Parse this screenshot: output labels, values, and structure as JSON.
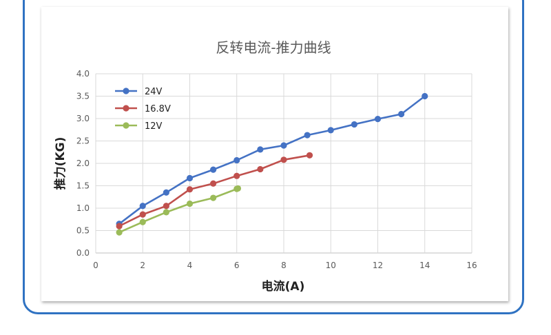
{
  "chart_data": {
    "type": "line",
    "title": "反转电流-推力曲线",
    "xlabel": "电流(A)",
    "ylabel": "推力(KG)",
    "xlim": [
      0,
      16
    ],
    "ylim": [
      0,
      4.0
    ],
    "xticks": [
      "0",
      "2",
      "4",
      "6",
      "8",
      "10",
      "12",
      "14",
      "16"
    ],
    "yticks": [
      "0.0",
      "0.5",
      "1.0",
      "1.5",
      "2.0",
      "2.5",
      "3.0",
      "3.5",
      "4.0"
    ],
    "grid": true,
    "legend_position": "top-left",
    "series": [
      {
        "name": "24V",
        "color": "#4472c4",
        "x": [
          1,
          2,
          3,
          4,
          5,
          6,
          7,
          8,
          9,
          10,
          11,
          12,
          13,
          14
        ],
        "y": [
          0.65,
          1.05,
          1.35,
          1.67,
          1.86,
          2.07,
          2.31,
          2.4,
          2.63,
          2.74,
          2.87,
          2.99,
          3.1,
          3.5
        ]
      },
      {
        "name": "16.8V",
        "color": "#c0504d",
        "x": [
          1,
          2,
          3,
          4,
          5,
          6,
          7,
          8,
          9.1
        ],
        "y": [
          0.6,
          0.86,
          1.05,
          1.42,
          1.55,
          1.72,
          1.87,
          2.08,
          2.18
        ]
      },
      {
        "name": "12V",
        "color": "#9bbb59",
        "x": [
          1,
          2,
          3,
          4,
          5,
          6,
          6.05
        ],
        "y": [
          0.46,
          0.69,
          0.91,
          1.1,
          1.23,
          1.43,
          1.44
        ]
      }
    ]
  }
}
